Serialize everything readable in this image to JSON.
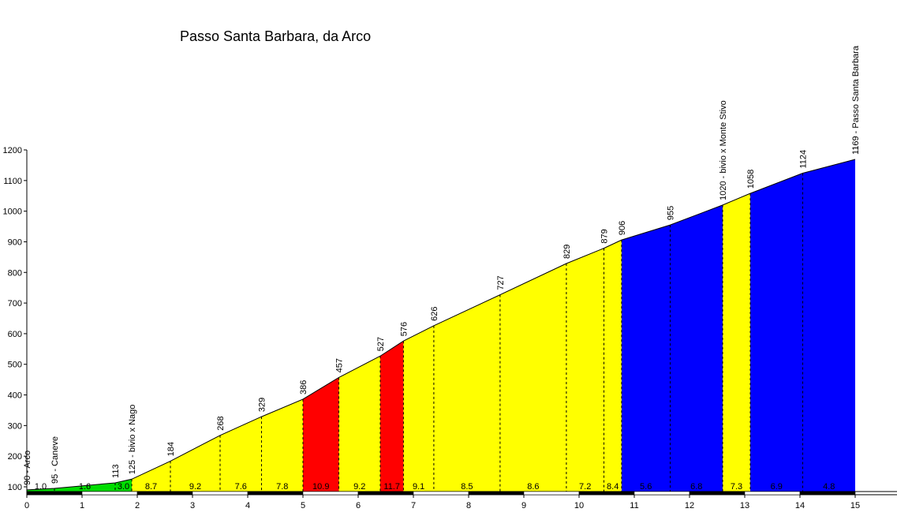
{
  "chart_data": {
    "type": "area",
    "title": "Passo Santa Barbara, da Arco",
    "xlabel": "",
    "ylabel": "",
    "xlim": [
      0,
      15
    ],
    "ylim": [
      75,
      1200
    ],
    "x_ticks": [
      0,
      1,
      2,
      3,
      4,
      5,
      6,
      7,
      8,
      9,
      10,
      11,
      12,
      13,
      14,
      15
    ],
    "y_ticks": [
      100,
      200,
      300,
      400,
      500,
      600,
      700,
      800,
      900,
      1000,
      1100,
      1200
    ],
    "profile": [
      {
        "km": 0.0,
        "alt": 90,
        "label": "90 - Arco"
      },
      {
        "km": 0.5,
        "alt": 95,
        "label": "95 - Caneve"
      },
      {
        "km": 1.6,
        "alt": 113,
        "label": "113"
      },
      {
        "km": 1.9,
        "alt": 125,
        "label": "125 - bivio x Nago"
      },
      {
        "km": 2.6,
        "alt": 184,
        "label": "184"
      },
      {
        "km": 3.5,
        "alt": 268,
        "label": "268"
      },
      {
        "km": 4.25,
        "alt": 329,
        "label": "329"
      },
      {
        "km": 5.0,
        "alt": 386,
        "label": "386"
      },
      {
        "km": 5.65,
        "alt": 457,
        "label": "457"
      },
      {
        "km": 6.4,
        "alt": 527,
        "label": "527"
      },
      {
        "km": 6.82,
        "alt": 576,
        "label": "576"
      },
      {
        "km": 7.37,
        "alt": 626,
        "label": "626"
      },
      {
        "km": 8.57,
        "alt": 727,
        "label": "727"
      },
      {
        "km": 9.77,
        "alt": 829,
        "label": "829"
      },
      {
        "km": 10.45,
        "alt": 879,
        "label": "879"
      },
      {
        "km": 10.77,
        "alt": 906,
        "label": "906"
      },
      {
        "km": 11.65,
        "alt": 955,
        "label": "955"
      },
      {
        "km": 12.6,
        "alt": 1020,
        "label": "1020 - bivio x Monte Stivo"
      },
      {
        "km": 13.1,
        "alt": 1058,
        "label": "1058"
      },
      {
        "km": 14.05,
        "alt": 1124,
        "label": "1124"
      },
      {
        "km": 15.0,
        "alt": 1169,
        "label": "1169 - Passo Santa Barbara"
      }
    ],
    "segments": [
      {
        "from": 0.0,
        "to": 0.5,
        "gradient": "1.0",
        "color": "#00dd00"
      },
      {
        "from": 0.5,
        "to": 1.6,
        "gradient": "1.6",
        "color": "#00dd00"
      },
      {
        "from": 1.6,
        "to": 1.9,
        "gradient": "3.0",
        "color": "#00dd00"
      },
      {
        "from": 1.9,
        "to": 2.6,
        "gradient": "8.7",
        "color": "#ffff00"
      },
      {
        "from": 2.6,
        "to": 3.5,
        "gradient": "9.2",
        "color": "#ffff00"
      },
      {
        "from": 3.5,
        "to": 4.25,
        "gradient": "7.6",
        "color": "#ffff00"
      },
      {
        "from": 4.25,
        "to": 5.0,
        "gradient": "7.8",
        "color": "#ffff00"
      },
      {
        "from": 5.0,
        "to": 5.65,
        "gradient": "10.9",
        "color": "#ff0000"
      },
      {
        "from": 5.65,
        "to": 6.4,
        "gradient": "9.2",
        "color": "#ffff00"
      },
      {
        "from": 6.4,
        "to": 6.82,
        "gradient": "11.7",
        "color": "#ff0000"
      },
      {
        "from": 6.82,
        "to": 7.37,
        "gradient": "9.1",
        "color": "#ffff00"
      },
      {
        "from": 7.37,
        "to": 8.57,
        "gradient": "8.5",
        "color": "#ffff00"
      },
      {
        "from": 8.57,
        "to": 9.77,
        "gradient": "8.6",
        "color": "#ffff00"
      },
      {
        "from": 9.77,
        "to": 10.45,
        "gradient": "7.2",
        "color": "#ffff00"
      },
      {
        "from": 10.45,
        "to": 10.77,
        "gradient": "8.4",
        "color": "#ffff00"
      },
      {
        "from": 10.77,
        "to": 11.65,
        "gradient": "5.6",
        "color": "#0000ff"
      },
      {
        "from": 11.65,
        "to": 12.6,
        "gradient": "6.8",
        "color": "#0000ff"
      },
      {
        "from": 12.6,
        "to": 13.1,
        "gradient": "7.3",
        "color": "#ffff00"
      },
      {
        "from": 13.1,
        "to": 14.05,
        "gradient": "6.9",
        "color": "#0000ff"
      },
      {
        "from": 14.05,
        "to": 15.0,
        "gradient": "4.8",
        "color": "#0000ff"
      }
    ],
    "grid": false,
    "legend": "none"
  }
}
